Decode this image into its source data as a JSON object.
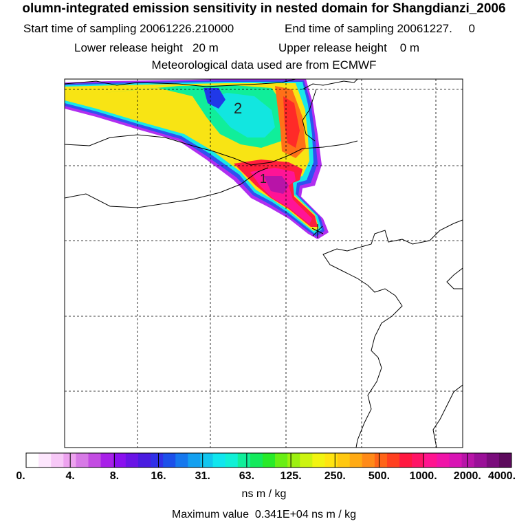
{
  "header": {
    "title": "olumn-integrated emission sensitivity in nested domain for Shangdianzi_2006",
    "start_label": "Start time of sampling 20061226.210000",
    "end_label": "End time of sampling 20061227.     0",
    "lower_label": "Lower release height   20 m",
    "upper_label": "Upper release height    0 m",
    "met_label": "Meteorological data used are from ECMWF"
  },
  "map": {
    "contour_labels": [
      "2",
      "1"
    ],
    "station_marker": "station-star"
  },
  "colorbar": {
    "tick_labels": [
      "0.",
      "4.",
      "8.",
      "16.",
      "31.",
      "63.",
      "125.",
      "250.",
      "500.",
      "1000.",
      "2000.",
      "4000."
    ],
    "colors": [
      "#ffffff",
      "#fde6fd",
      "#f7c8f7",
      "#eda2ef",
      "#d77ae6",
      "#c34ce2",
      "#a820e8",
      "#8a10ef",
      "#6a14e6",
      "#4a1ce0",
      "#3030e8",
      "#1c50ea",
      "#1678ee",
      "#14a0f0",
      "#12c6ee",
      "#10e6ee",
      "#10f0d6",
      "#10ee9a",
      "#14ea5c",
      "#28ea28",
      "#68ee14",
      "#9cf010",
      "#ccf410",
      "#f2f410",
      "#ffe410",
      "#ffc810",
      "#ffaa14",
      "#ff8a18",
      "#ff6418",
      "#ff4020",
      "#ff1840",
      "#ff1466",
      "#ff1490",
      "#f014a8",
      "#d814b4",
      "#b814a8",
      "#9a1098",
      "#7a0c7c",
      "#5c0a5c"
    ],
    "units": "ns m / kg",
    "max_value_text": "Maximum value  0.341E+04 ns m / kg"
  }
}
